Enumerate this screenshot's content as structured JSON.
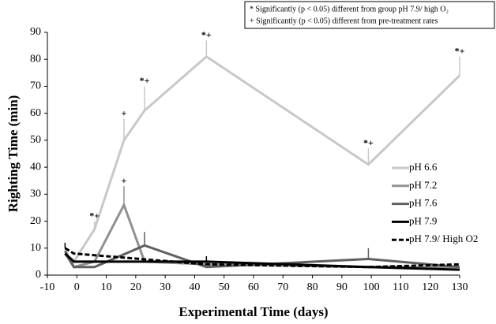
{
  "chart_data": {
    "type": "line",
    "notes": [
      "* Significantly (p < 0.05) different from group pH 7.9/ high O₂",
      "+ Significantly (p < 0.05) different from pre-treatment rates"
    ],
    "xlabel": "Experimental Time (days)",
    "ylabel": "Righting Time (min)",
    "xlim": [
      -10,
      130
    ],
    "xticks": [
      -10,
      0,
      10,
      20,
      30,
      40,
      50,
      60,
      70,
      80,
      90,
      100,
      110,
      120,
      130
    ],
    "ylim": [
      0,
      90
    ],
    "yticks": [
      0,
      10,
      20,
      30,
      40,
      50,
      60,
      70,
      80,
      90
    ],
    "legend": "right",
    "series": [
      {
        "name": "pH 6.6",
        "color": "#c8c8c8",
        "line_style": "solid",
        "x": [
          -4,
          -1,
          6,
          16,
          23,
          44,
          99,
          130
        ],
        "values": [
          8,
          5,
          17,
          50,
          61,
          81,
          41,
          74
        ],
        "errors": [
          null,
          null,
          3,
          8,
          9,
          6,
          6,
          7
        ],
        "point_labels": [
          null,
          null,
          "*+",
          "+",
          "*+",
          "*+",
          "*+",
          "*+"
        ]
      },
      {
        "name": "pH 7.2",
        "color": "#919191",
        "line_style": "solid",
        "x": [
          -4,
          -1,
          6,
          16,
          23,
          44,
          99,
          130
        ],
        "values": [
          8,
          3,
          5,
          26,
          5,
          4,
          3,
          3
        ],
        "errors": [
          null,
          null,
          null,
          7,
          null,
          null,
          null,
          null
        ],
        "point_labels": [
          null,
          null,
          null,
          "+",
          null,
          null,
          null,
          null
        ]
      },
      {
        "name": "pH 7.6",
        "color": "#606060",
        "line_style": "solid",
        "x": [
          -4,
          -1,
          6,
          23,
          44,
          99,
          130
        ],
        "values": [
          9,
          3,
          3,
          11,
          3,
          6,
          3
        ],
        "errors": [
          null,
          null,
          null,
          5,
          null,
          4,
          null
        ],
        "point_labels": [
          null,
          null,
          null,
          null,
          null,
          null,
          null
        ]
      },
      {
        "name": "pH 7.9",
        "color": "#000000",
        "line_style": "solid",
        "x": [
          -4,
          -1,
          44,
          99,
          130
        ],
        "values": [
          8,
          5,
          5,
          3,
          2
        ],
        "errors": [
          null,
          null,
          2,
          null,
          null
        ],
        "point_labels": [
          null,
          null,
          null,
          null,
          null
        ]
      },
      {
        "name": "pH 7.9/ High O2",
        "color": "#000000",
        "line_style": "dashed",
        "x": [
          -4,
          -1,
          44,
          99,
          130
        ],
        "values": [
          10,
          8,
          4,
          3,
          4
        ],
        "errors": [
          2,
          null,
          null,
          null,
          null
        ],
        "point_labels": [
          null,
          null,
          null,
          null,
          null
        ]
      }
    ]
  }
}
